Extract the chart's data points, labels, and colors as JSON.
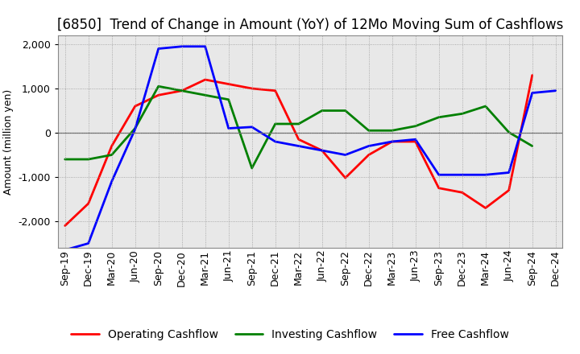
{
  "title": "[6850]  Trend of Change in Amount (YoY) of 12Mo Moving Sum of Cashflows",
  "ylabel": "Amount (million yen)",
  "x_labels": [
    "Sep-19",
    "Dec-19",
    "Mar-20",
    "Jun-20",
    "Sep-20",
    "Dec-20",
    "Mar-21",
    "Jun-21",
    "Sep-21",
    "Dec-21",
    "Mar-22",
    "Jun-22",
    "Sep-22",
    "Dec-22",
    "Mar-23",
    "Jun-23",
    "Sep-23",
    "Dec-23",
    "Mar-24",
    "Jun-24",
    "Sep-24",
    "Dec-24"
  ],
  "operating_cashflow": [
    -2100,
    -1600,
    -300,
    600,
    850,
    950,
    1200,
    1100,
    1000,
    950,
    -150,
    -400,
    -1020,
    -500,
    -200,
    -200,
    -1250,
    -1350,
    -1700,
    -1300,
    1300,
    null
  ],
  "investing_cashflow": [
    -600,
    -600,
    -500,
    100,
    1050,
    950,
    850,
    750,
    -800,
    200,
    200,
    500,
    500,
    50,
    50,
    150,
    350,
    430,
    600,
    10,
    -300,
    null
  ],
  "free_cashflow": [
    -2650,
    -2500,
    -1100,
    80,
    1900,
    1950,
    1950,
    100,
    130,
    -200,
    -300,
    -400,
    -500,
    -300,
    -200,
    -150,
    -950,
    -950,
    -950,
    -900,
    900,
    950
  ],
  "ylim": [
    -2600,
    2200
  ],
  "yticks": [
    -2000,
    -1000,
    0,
    1000,
    2000
  ],
  "operating_color": "#ff0000",
  "investing_color": "#008000",
  "free_color": "#0000ff",
  "background_color": "#ffffff",
  "plot_bg_color": "#e8e8e8",
  "grid_color": "#999999",
  "title_fontsize": 12,
  "axis_fontsize": 9,
  "legend_fontsize": 10,
  "linewidth": 2.0
}
